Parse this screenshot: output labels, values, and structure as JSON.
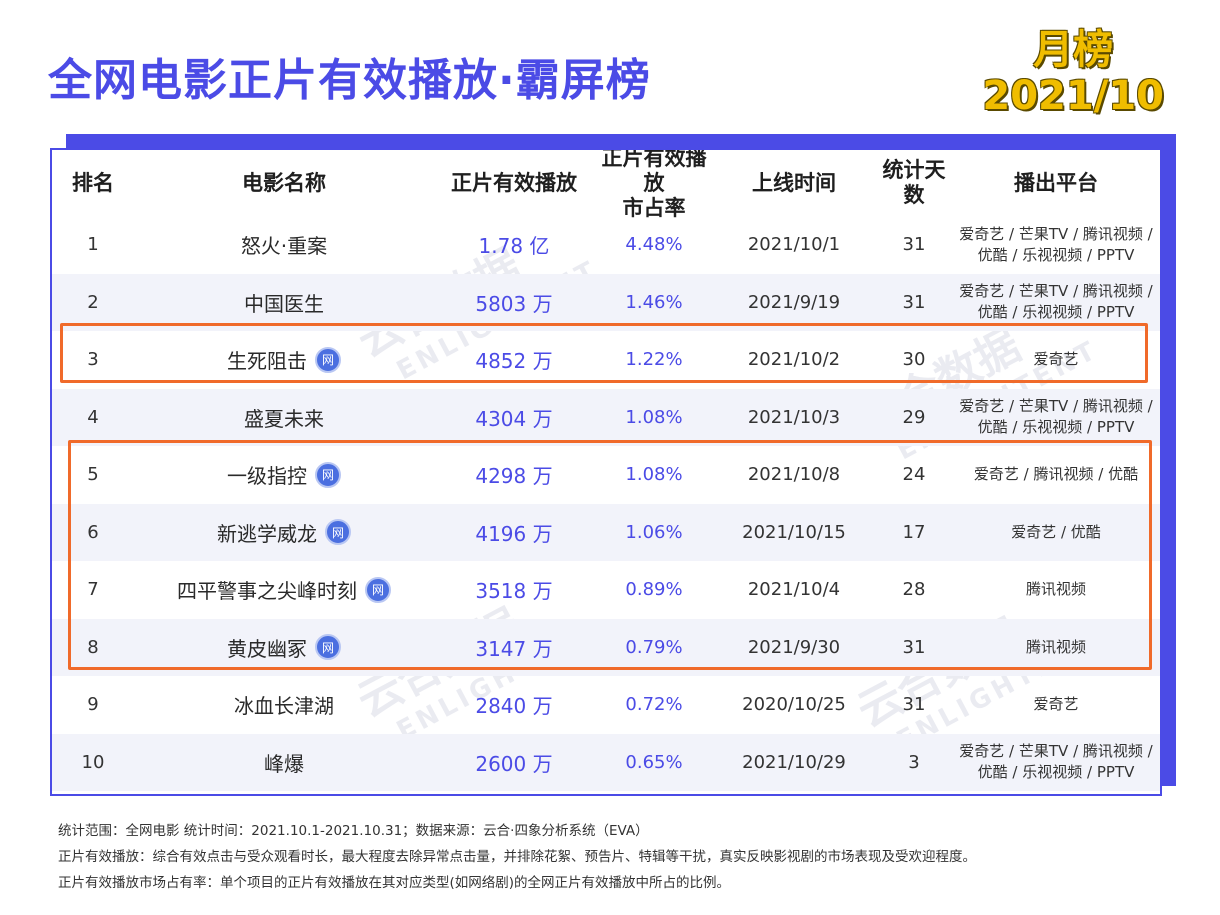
{
  "header": {
    "title": "全网电影正片有效播放·霸屏榜",
    "badge_line1": "月榜",
    "badge_line2": "2021/10"
  },
  "colors": {
    "accent": "#4b4be6",
    "highlight_border": "#f06a2a",
    "badge_yellow": "#f0bd00"
  },
  "watermark": {
    "cn": "云合数据",
    "en": "ENLIGHTENT"
  },
  "table": {
    "columns": [
      "排名",
      "电影名称",
      "正片有效播放",
      "正片有效播放\n市占率",
      "上线时间",
      "统计天数",
      "播出平台"
    ],
    "rows": [
      {
        "rank": "1",
        "name": "怒火·重案",
        "net": false,
        "play": "1.78 亿",
        "share": "4.48%",
        "date": "2021/10/1",
        "days": "31",
        "platform": "爱奇艺 / 芒果TV / 腾讯视频 / 优酷 / 乐视视频 / PPTV"
      },
      {
        "rank": "2",
        "name": "中国医生",
        "net": false,
        "play": "5803 万",
        "share": "1.46%",
        "date": "2021/9/19",
        "days": "31",
        "platform": "爱奇艺 / 芒果TV / 腾讯视频 / 优酷 / 乐视视频 / PPTV"
      },
      {
        "rank": "3",
        "name": "生死阻击",
        "net": true,
        "play": "4852 万",
        "share": "1.22%",
        "date": "2021/10/2",
        "days": "30",
        "platform": "爱奇艺"
      },
      {
        "rank": "4",
        "name": "盛夏未来",
        "net": false,
        "play": "4304 万",
        "share": "1.08%",
        "date": "2021/10/3",
        "days": "29",
        "platform": "爱奇艺 / 芒果TV / 腾讯视频 / 优酷 / 乐视视频 / PPTV"
      },
      {
        "rank": "5",
        "name": "一级指控",
        "net": true,
        "play": "4298 万",
        "share": "1.08%",
        "date": "2021/10/8",
        "days": "24",
        "platform": "爱奇艺 / 腾讯视频 / 优酷"
      },
      {
        "rank": "6",
        "name": "新逃学威龙",
        "net": true,
        "play": "4196 万",
        "share": "1.06%",
        "date": "2021/10/15",
        "days": "17",
        "platform": "爱奇艺 / 优酷"
      },
      {
        "rank": "7",
        "name": "四平警事之尖峰时刻",
        "net": true,
        "play": "3518 万",
        "share": "0.89%",
        "date": "2021/10/4",
        "days": "28",
        "platform": "腾讯视频"
      },
      {
        "rank": "8",
        "name": "黄皮幽冢",
        "net": true,
        "play": "3147 万",
        "share": "0.79%",
        "date": "2021/9/30",
        "days": "31",
        "platform": "腾讯视频"
      },
      {
        "rank": "9",
        "name": "冰血长津湖",
        "net": false,
        "play": "2840 万",
        "share": "0.72%",
        "date": "2020/10/25",
        "days": "31",
        "platform": "爱奇艺"
      },
      {
        "rank": "10",
        "name": "峰爆",
        "net": false,
        "play": "2600 万",
        "share": "0.65%",
        "date": "2021/10/29",
        "days": "3",
        "platform": "爱奇艺 / 芒果TV / 腾讯视频 / 优酷 / 乐视视频 / PPTV"
      }
    ],
    "net_icon_label": "网"
  },
  "notes": {
    "line1": "统计范围：全网电影    统计时间：2021.10.1-2021.10.31；数据来源：云合·四象分析系统（EVA）",
    "line2": "正片有效播放：综合有效点击与受众观看时长，最大程度去除异常点击量，并排除花絮、预告片、特辑等干扰，真实反映影视剧的市场表现及受欢迎程度。",
    "line3": "正片有效播放市场占有率：单个项目的正片有效播放在其对应类型(如网络剧)的全网正片有效播放中所占的比例。"
  }
}
